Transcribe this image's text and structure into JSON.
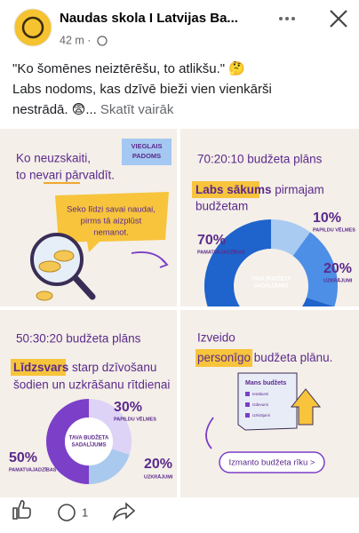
{
  "header": {
    "page_name": "Naudas skola I Latvijas Ba...",
    "time": "42 m ·"
  },
  "post": {
    "lines": [
      "\"Ko šomēnes neiztērēšu, to atlikšu.\" 🤔",
      "Labs nodoms, kas dzīvē bieži vien vienkārši",
      "nestrādā. 😨..."
    ],
    "see_more": "Skatīt vairāk"
  },
  "tiles": [
    {
      "badge": [
        "VIEGLAIS",
        "PADOMS"
      ],
      "title": [
        "Ko neuzskaiti,",
        "to nevari pārvaldīt."
      ],
      "bubble": [
        "Seko līdzi savai naudai,",
        "pirms tā aizplūst",
        "nemanot."
      ]
    },
    {
      "title": "70:20:10 budžeta plāns",
      "highlight": "Labs sākums",
      "subtitle": [
        " pirmajam",
        "budžetam"
      ],
      "center": [
        "TAVA BUDŽETA",
        "SADALĪJUMS"
      ],
      "donut": [
        {
          "value": 10,
          "label": "10%",
          "name": "PAPILDU VĒLMES",
          "color": "#a9cbf2"
        },
        {
          "value": 20,
          "label": "20%",
          "name": "UZKRĀJUMI",
          "color": "#4d8ee6"
        },
        {
          "value": 70,
          "label": "70%",
          "name": "PAMATVAJADZĪBAS",
          "color": "#1f63cc"
        }
      ]
    },
    {
      "title": "50:30:20 budžeta plāns",
      "highlight": "Līdzsvars",
      "subtitle": [
        " starp dzīvošanu",
        "šodien un uzkrāšanu rītdienai"
      ],
      "center": [
        "TAVA BUDŽETA",
        "SADALĪJUMS"
      ],
      "donut": [
        {
          "value": 30,
          "label": "30%",
          "name": "PAPILDU VĒLMES",
          "color": "#dcd3f6"
        },
        {
          "value": 20,
          "label": "20%",
          "name": "UZKRĀJUMI",
          "color": "#a9c9ee"
        },
        {
          "value": 50,
          "label": "50%",
          "name": "PAMATVAJADZĪBAS",
          "color": "#7b3fc8"
        }
      ]
    },
    {
      "title": [
        "Izveido",
        "personīgo",
        " budžeta plānu."
      ],
      "card_title": "Mans budžets",
      "card_items": [
        "Ienākumi",
        "Izdevumi",
        "Uzkrājumi"
      ],
      "button": "Izmanto budžeta rīku >"
    }
  ],
  "footer": {
    "comments": "1"
  }
}
